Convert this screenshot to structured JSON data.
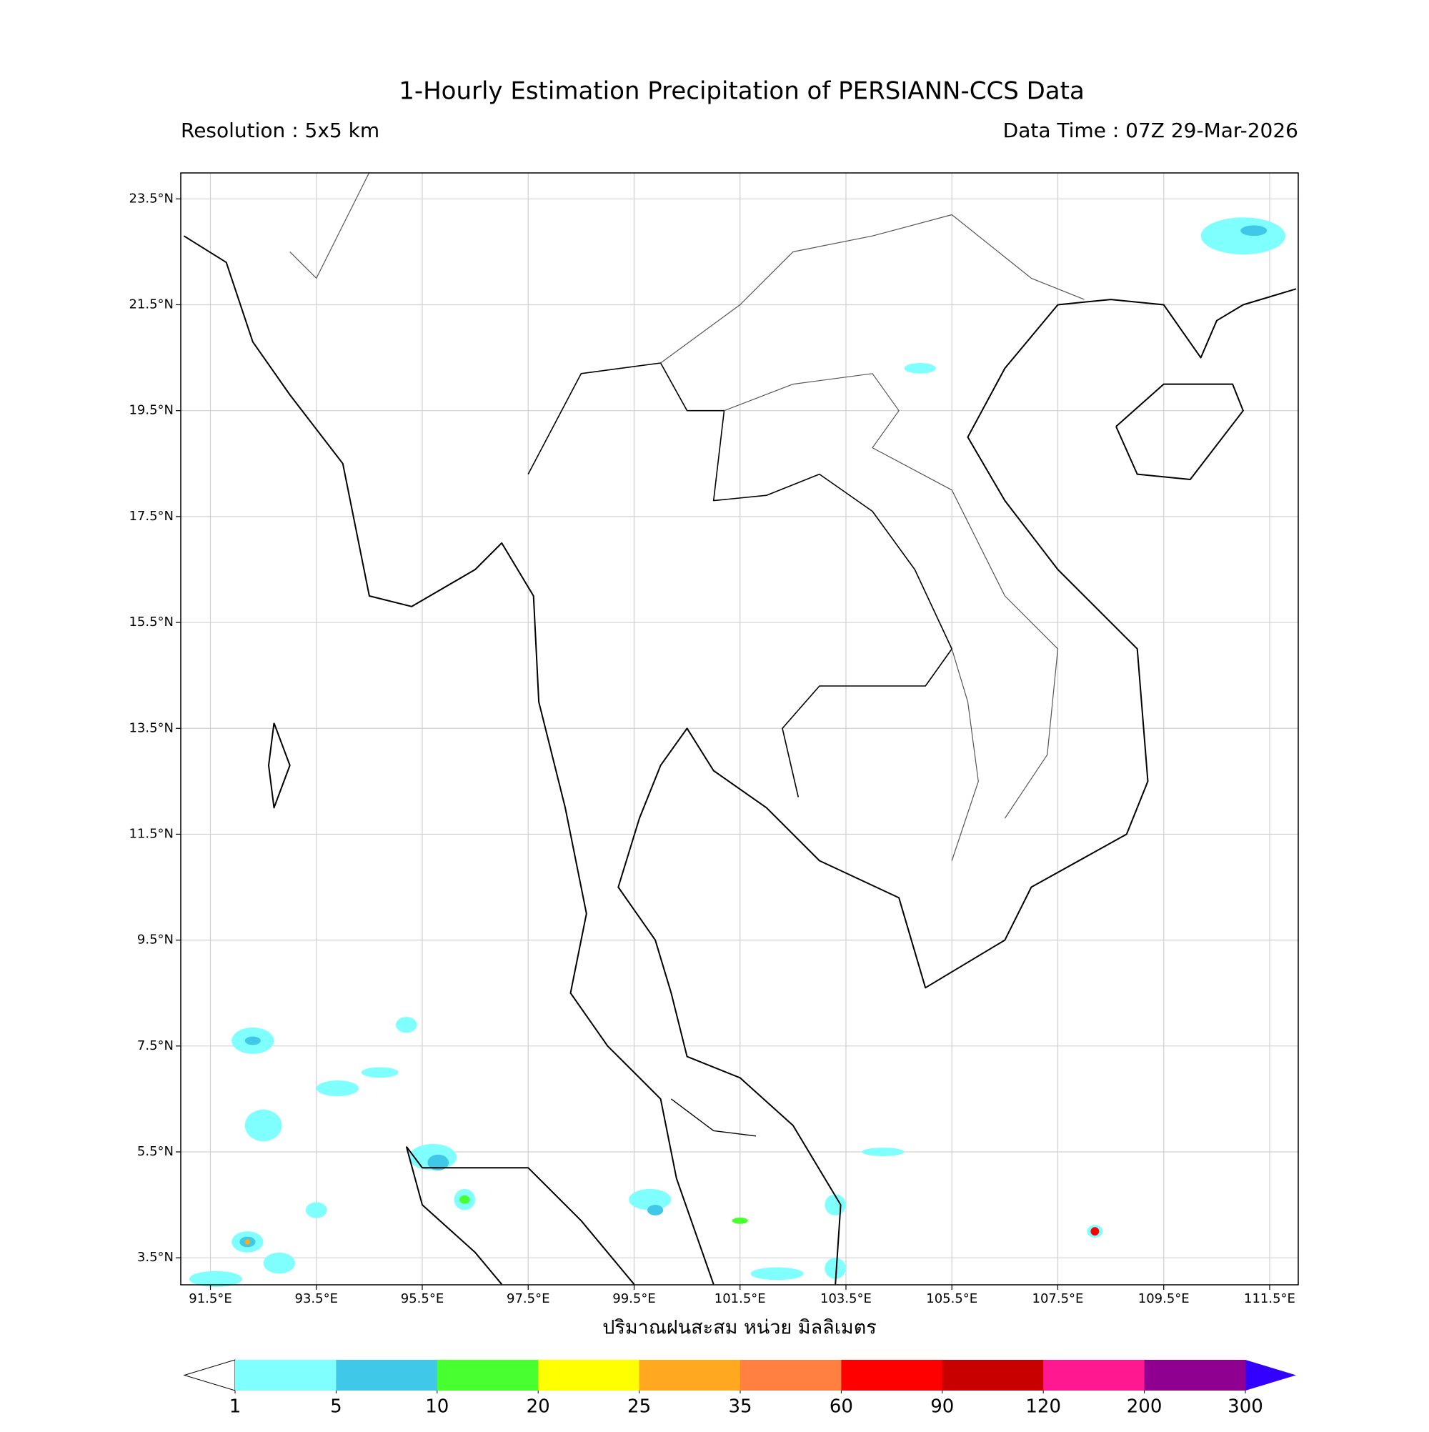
{
  "title": "1-Hourly Estimation Precipitation of PERSIANN-CCS Data",
  "resolution": "Resolution : 5x5 km",
  "data_time": "Data Time : 07Z 29-Mar-2026",
  "map": {
    "xlim": [
      90.94,
      112.04
    ],
    "ylim": [
      2.99,
      23.99
    ],
    "xticks": [
      {
        "value": 91.5,
        "label": "91.5°E"
      },
      {
        "value": 93.5,
        "label": "93.5°E"
      },
      {
        "value": 95.5,
        "label": "95.5°E"
      },
      {
        "value": 97.5,
        "label": "97.5°E"
      },
      {
        "value": 99.5,
        "label": "99.5°E"
      },
      {
        "value": 101.5,
        "label": "101.5°E"
      },
      {
        "value": 103.5,
        "label": "103.5°E"
      },
      {
        "value": 105.5,
        "label": "105.5°E"
      },
      {
        "value": 107.5,
        "label": "107.5°E"
      },
      {
        "value": 109.5,
        "label": "109.5°E"
      },
      {
        "value": 111.5,
        "label": "111.5°E"
      }
    ],
    "yticks": [
      {
        "value": 3.5,
        "label": "3.5°N"
      },
      {
        "value": 5.5,
        "label": "5.5°N"
      },
      {
        "value": 7.5,
        "label": "7.5°N"
      },
      {
        "value": 9.5,
        "label": "9.5°N"
      },
      {
        "value": 11.5,
        "label": "11.5°N"
      },
      {
        "value": 13.5,
        "label": "13.5°N"
      },
      {
        "value": 15.5,
        "label": "15.5°N"
      },
      {
        "value": 17.5,
        "label": "17.5°N"
      },
      {
        "value": 19.5,
        "label": "19.5°N"
      },
      {
        "value": 21.5,
        "label": "21.5°N"
      },
      {
        "value": 23.5,
        "label": "23.5°N"
      }
    ],
    "grid": true
  },
  "colorbar": {
    "label": "ปริมาณฝนสะสม หน่วย มิลลิเมตร",
    "levels": [
      1,
      5,
      10,
      20,
      25,
      35,
      60,
      90,
      120,
      200,
      300
    ],
    "colors": [
      "#80ffff",
      "#40c8e8",
      "#48ff30",
      "#ffff00",
      "#ffa820",
      "#ff8040",
      "#ff0000",
      "#c80000",
      "#ff1890",
      "#900090"
    ],
    "under_color": "#ffffff",
    "over_color": "#3300ff"
  }
}
